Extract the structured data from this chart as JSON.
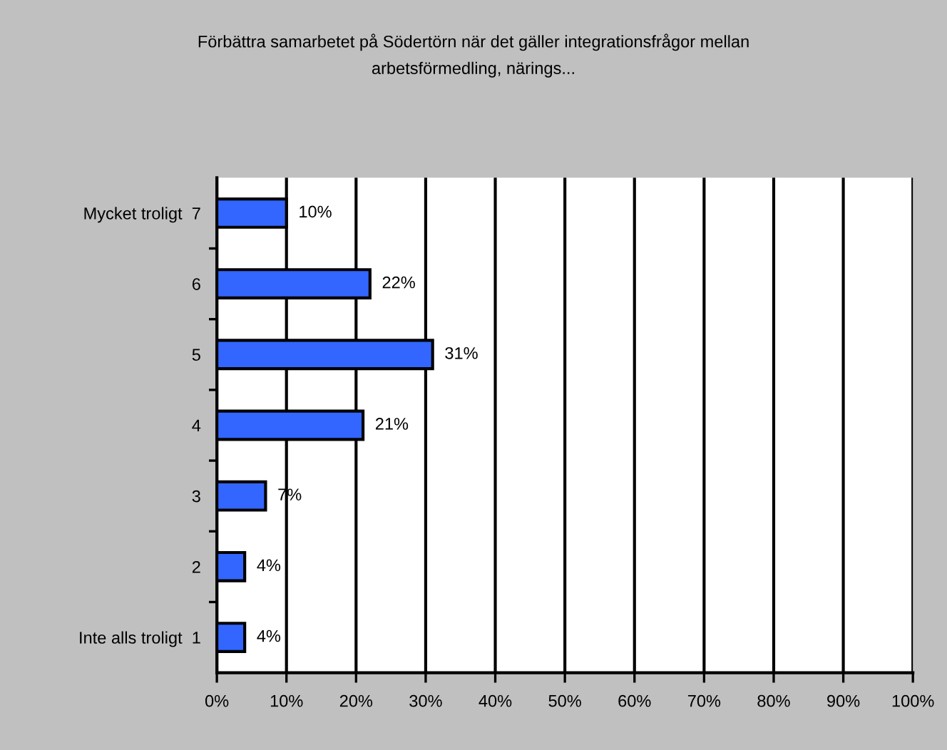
{
  "chart_data": {
    "type": "bar",
    "orientation": "horizontal",
    "title": "Förbättra samarbetet på Södertörn när det gäller integrationsfrågor mellan\narbetsförmedling, närings...",
    "categories": [
      "Mycket troligt  7",
      "6",
      "5",
      "4",
      "3",
      "2",
      "Inte alls troligt  1"
    ],
    "values": [
      10,
      22,
      31,
      21,
      7,
      4,
      4
    ],
    "value_labels": [
      "10%",
      "22%",
      "31%",
      "21%",
      "7%",
      "4%",
      "4%"
    ],
    "color": "#3366ff",
    "xlim": [
      0,
      100
    ],
    "xticks": [
      {
        "value": 0,
        "label": "0%"
      },
      {
        "value": 10,
        "label": "10%"
      },
      {
        "value": 20,
        "label": "20%"
      },
      {
        "value": 30,
        "label": "30%"
      },
      {
        "value": 40,
        "label": "40%"
      },
      {
        "value": 50,
        "label": "50%"
      },
      {
        "value": 60,
        "label": "60%"
      },
      {
        "value": 70,
        "label": "70%"
      },
      {
        "value": 80,
        "label": "80%"
      },
      {
        "value": 90,
        "label": "90%"
      },
      {
        "value": 100,
        "label": "100%"
      }
    ],
    "grid": "x"
  }
}
